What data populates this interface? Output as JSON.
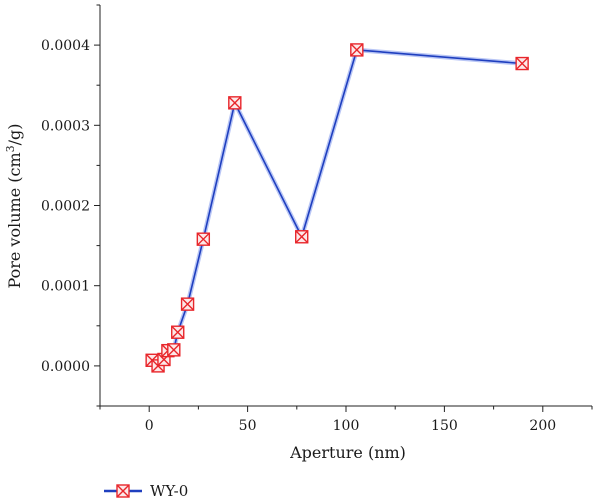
{
  "chart_data": {
    "type": "line",
    "title": "",
    "xlabel": "Aperture (nm)",
    "ylabel_main": "Pore volume (cm",
    "ylabel_sup": "3",
    "ylabel_tail": "/g)",
    "xlim": [
      -25,
      225
    ],
    "ylim": [
      -5e-05,
      0.00045
    ],
    "xticks": [
      0,
      50,
      100,
      150,
      200
    ],
    "xtick_labels": [
      "0",
      "50",
      "100",
      "150",
      "200"
    ],
    "yticks": [
      0,
      0.0001,
      0.0002,
      0.0003,
      0.0004
    ],
    "ytick_labels": [
      "0.0000",
      "0.0001",
      "0.0002",
      "0.0003",
      "0.0004"
    ],
    "grid": false,
    "legend_position": "bottom-left",
    "series": [
      {
        "name": "WY-0",
        "line_color": "#1f3fbf",
        "marker_color": "#e8262b",
        "marker": "boxed-x",
        "x": [
          1.5,
          4.5,
          7.5,
          9.5,
          12.5,
          14.5,
          19.5,
          27.5,
          43.5,
          77.5,
          105.5,
          189.5
        ],
        "y": [
          7e-06,
          0.0,
          8e-06,
          1.9e-05,
          2e-05,
          4.2e-05,
          7.7e-05,
          0.000158,
          0.000328,
          0.000161,
          0.000394,
          0.000377
        ]
      }
    ]
  }
}
